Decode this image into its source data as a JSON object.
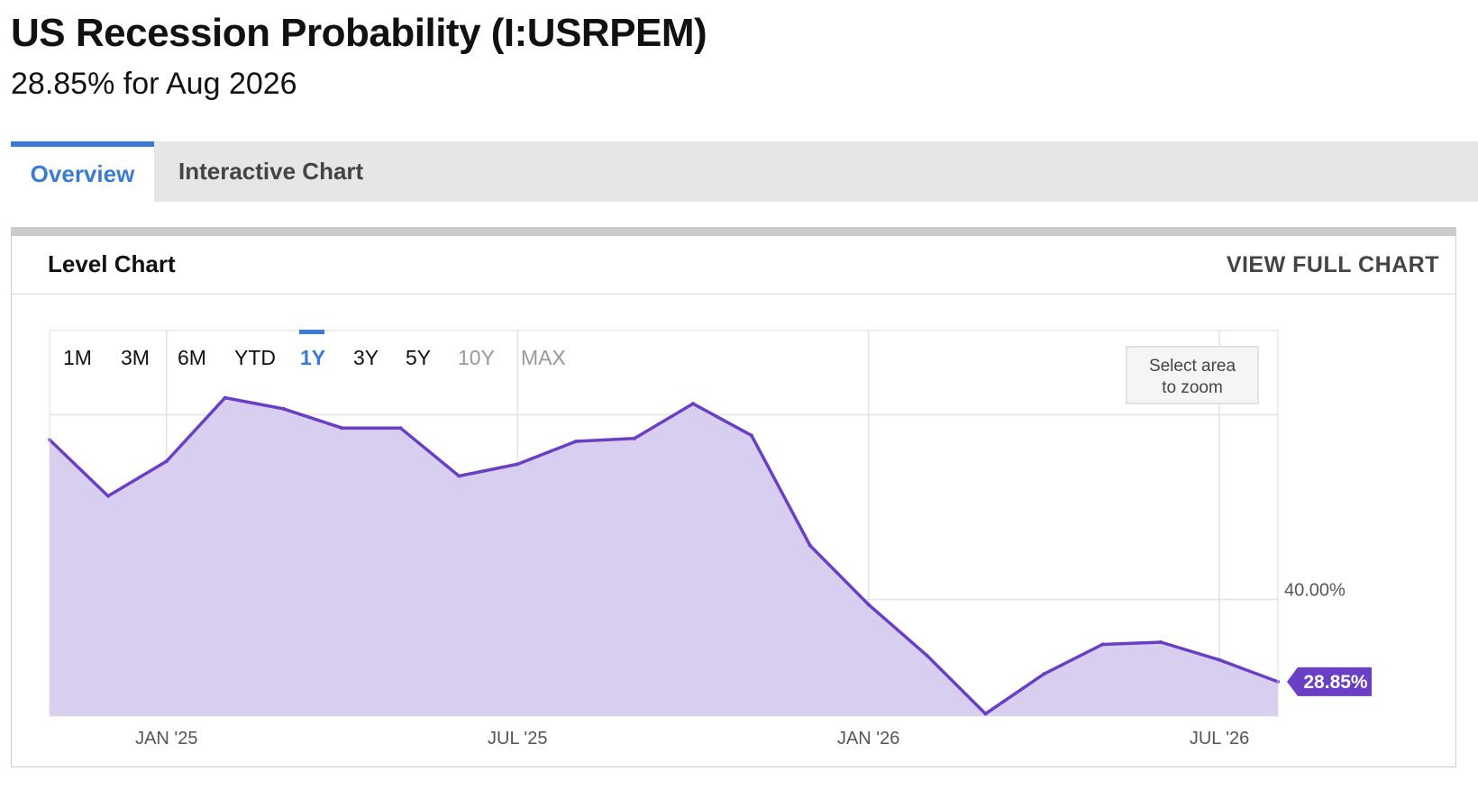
{
  "header": {
    "title": "US Recession Probability (I:USRPEM)",
    "subtitle": "28.85% for Aug 2026"
  },
  "tabs": [
    {
      "label": "Overview",
      "active": true
    },
    {
      "label": "Interactive Chart",
      "active": false
    }
  ],
  "card": {
    "title": "Level Chart",
    "view_full_label": "VIEW FULL CHART"
  },
  "range_buttons": [
    {
      "label": "1M",
      "state": "enabled"
    },
    {
      "label": "3M",
      "state": "enabled"
    },
    {
      "label": "6M",
      "state": "enabled"
    },
    {
      "label": "YTD",
      "state": "enabled"
    },
    {
      "label": "1Y",
      "state": "active"
    },
    {
      "label": "3Y",
      "state": "enabled"
    },
    {
      "label": "5Y",
      "state": "enabled"
    },
    {
      "label": "10Y",
      "state": "disabled"
    },
    {
      "label": "MAX",
      "state": "disabled"
    }
  ],
  "zoom_hint": {
    "line1": "Select area",
    "line2": "to zoom"
  },
  "colors": {
    "accent": "#3a7bd5",
    "series_line": "#6a3fc6",
    "series_fill": "#d8cff0",
    "tag_bg": "#6a3fc6",
    "disabled": "#999999"
  },
  "chart_data": {
    "type": "area",
    "x": [
      "2024-11",
      "2024-12",
      "2025-01",
      "2025-02",
      "2025-03",
      "2025-04",
      "2025-05",
      "2025-06",
      "2025-07",
      "2025-08",
      "2025-09",
      "2025-10",
      "2025-11",
      "2025-12",
      "2026-01",
      "2026-02",
      "2026-03",
      "2026-04",
      "2026-05",
      "2026-06",
      "2026-07",
      "2026-08"
    ],
    "series": [
      {
        "values": [
          61.6,
          54.0,
          58.7,
          67.3,
          65.8,
          63.2,
          63.2,
          56.7,
          58.3,
          61.4,
          61.8,
          66.5,
          62.2,
          47.3,
          39.3,
          32.4,
          24.5,
          29.9,
          33.9,
          34.2,
          31.8,
          28.85
        ]
      }
    ],
    "x_ticks": [
      {
        "x": "2025-01",
        "label": "JAN '25"
      },
      {
        "x": "2025-07",
        "label": "JUL '25"
      },
      {
        "x": "2026-01",
        "label": "JAN '26"
      },
      {
        "x": "2026-07",
        "label": "JUL '26"
      }
    ],
    "y_ticks": [
      {
        "value": 40,
        "label": "40.00%"
      }
    ],
    "last_value_label": "28.85%",
    "ylim": [
      24.2,
      76.4
    ],
    "grid": true
  }
}
